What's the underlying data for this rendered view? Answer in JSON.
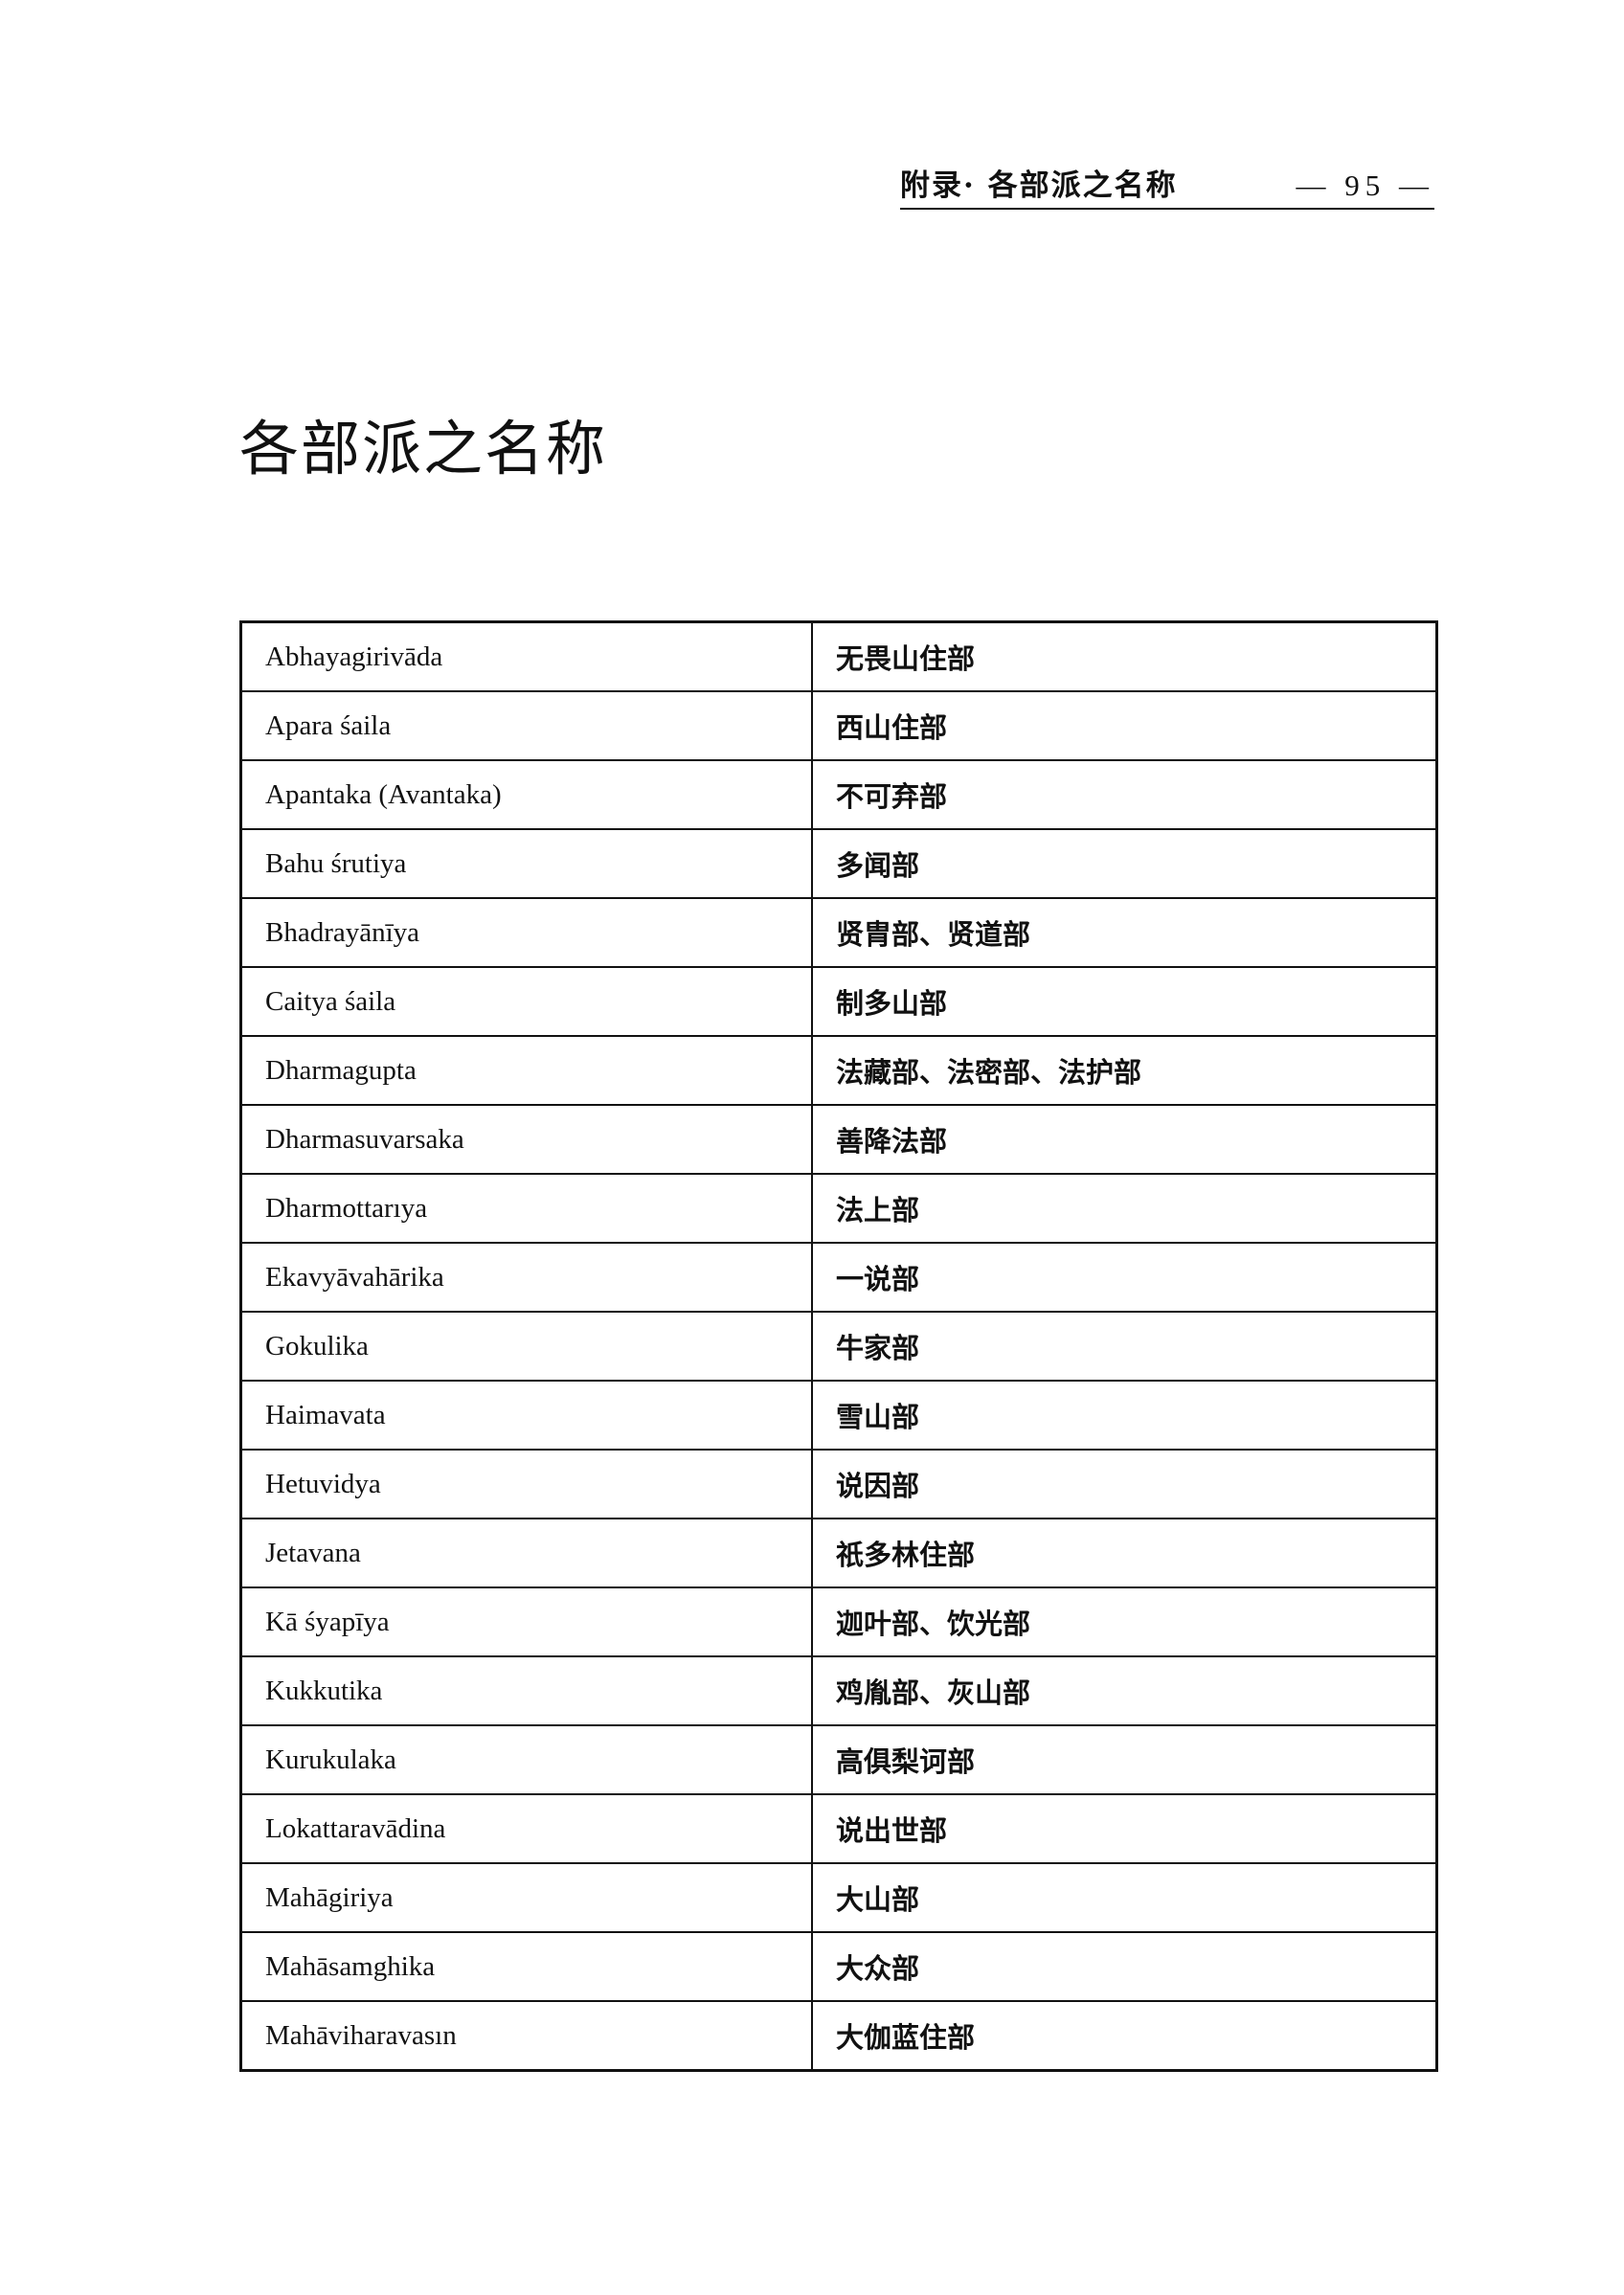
{
  "header": {
    "section": "附录· 各部派之名称",
    "page": "— 95 —"
  },
  "title": "各部派之名称",
  "rows": [
    {
      "sanskrit": "Abhayagirivāda",
      "chinese": "无畏山住部"
    },
    {
      "sanskrit": "Apara śaila",
      "chinese": "西山住部"
    },
    {
      "sanskrit": "Apantaka (Avantaka)",
      "chinese": "不可弃部"
    },
    {
      "sanskrit": "Bahu śrutiya",
      "chinese": "多闻部"
    },
    {
      "sanskrit": "Bhadrayānīya",
      "chinese": "贤胄部、贤道部"
    },
    {
      "sanskrit": "Caitya śaila",
      "chinese": "制多山部"
    },
    {
      "sanskrit": "Dharmagupta",
      "chinese": "法藏部、法密部、法护部"
    },
    {
      "sanskrit": "Dharmasuvarsaka",
      "chinese": "善降法部"
    },
    {
      "sanskrit": "Dharmottarıya",
      "chinese": "法上部"
    },
    {
      "sanskrit": "Ekavyāvahārika",
      "chinese": "一说部"
    },
    {
      "sanskrit": "Gokulika",
      "chinese": "牛家部"
    },
    {
      "sanskrit": "Haimavata",
      "chinese": "雪山部"
    },
    {
      "sanskrit": "Hetuvidya",
      "chinese": "说因部"
    },
    {
      "sanskrit": "Jetavana",
      "chinese": "祇多林住部"
    },
    {
      "sanskrit": "Kā śyapīya",
      "chinese": "迦叶部、饮光部"
    },
    {
      "sanskrit": "Kukkutika",
      "chinese": "鸡胤部、灰山部"
    },
    {
      "sanskrit": "Kurukulaka",
      "chinese": "高俱梨诃部"
    },
    {
      "sanskrit": "Lokattaravādina",
      "chinese": "说出世部"
    },
    {
      "sanskrit": "Mahāgiriya",
      "chinese": "大山部"
    },
    {
      "sanskrit": "Mahāsamghika",
      "chinese": "大众部"
    },
    {
      "sanskrit": "Mahāviharavasın",
      "chinese": "大伽蓝住部"
    }
  ]
}
